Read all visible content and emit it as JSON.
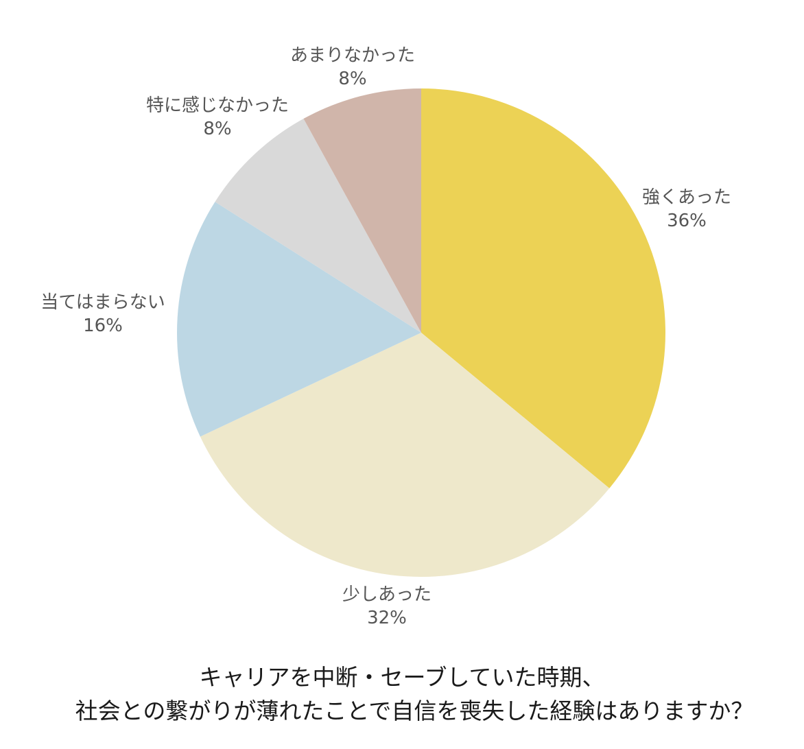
{
  "chart_data": {
    "type": "pie",
    "title_lines": [
      "キャリアを中断・セーブしていた時期、",
      "社会との繋がりが薄れたことで自信を喪失した経験はありますか？"
    ],
    "slices": [
      {
        "label": "強くあった",
        "value": 36,
        "display": "36%",
        "color": "#ECD255"
      },
      {
        "label": "少しあった",
        "value": 32,
        "display": "32%",
        "color": "#EEE8CB"
      },
      {
        "label": "当てはまらない",
        "value": 16,
        "display": "16%",
        "color": "#BDD7E4"
      },
      {
        "label": "特に感じなかった",
        "value": 8,
        "display": "8%",
        "color": "#D9D9D9"
      },
      {
        "label": "あまりなかった",
        "value": 8,
        "display": "8%",
        "color": "#D0B5AA"
      }
    ],
    "start": "12 o'clock",
    "direction": "clockwise",
    "legend": "none"
  }
}
